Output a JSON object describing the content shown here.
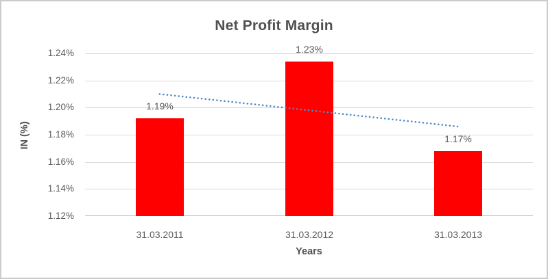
{
  "chart_data": {
    "type": "bar",
    "title": "Net Profit Margin",
    "xlabel": "Years",
    "ylabel": "IN (%)",
    "categories": [
      "31.03.2011",
      "31.03.2012",
      "31.03.2013"
    ],
    "values": [
      1.192,
      1.234,
      1.168
    ],
    "value_labels": [
      "1.19%",
      "1.23%",
      "1.17%"
    ],
    "ylim": [
      1.12,
      1.24
    ],
    "yticks": [
      {
        "value": 1.12,
        "label": "1.12%"
      },
      {
        "value": 1.14,
        "label": "1.14%"
      },
      {
        "value": 1.16,
        "label": "1.16%"
      },
      {
        "value": 1.18,
        "label": "1.18%"
      },
      {
        "value": 1.2,
        "label": "1.20%"
      },
      {
        "value": 1.22,
        "label": "1.22%"
      },
      {
        "value": 1.24,
        "label": "1.24%"
      }
    ],
    "grid": true,
    "legend": "none",
    "trendline": {
      "style": "dotted",
      "start_value": 1.21,
      "end_value": 1.186
    },
    "colors": {
      "bar": "#FF0000",
      "trendline": "#4E8AC8",
      "gridline": "#D9D9D9",
      "axis_line": "#BFBFBF",
      "text": "#595959",
      "title_text": "#515151",
      "border": "#CBCBCB",
      "background": "#FFFFFF"
    }
  }
}
